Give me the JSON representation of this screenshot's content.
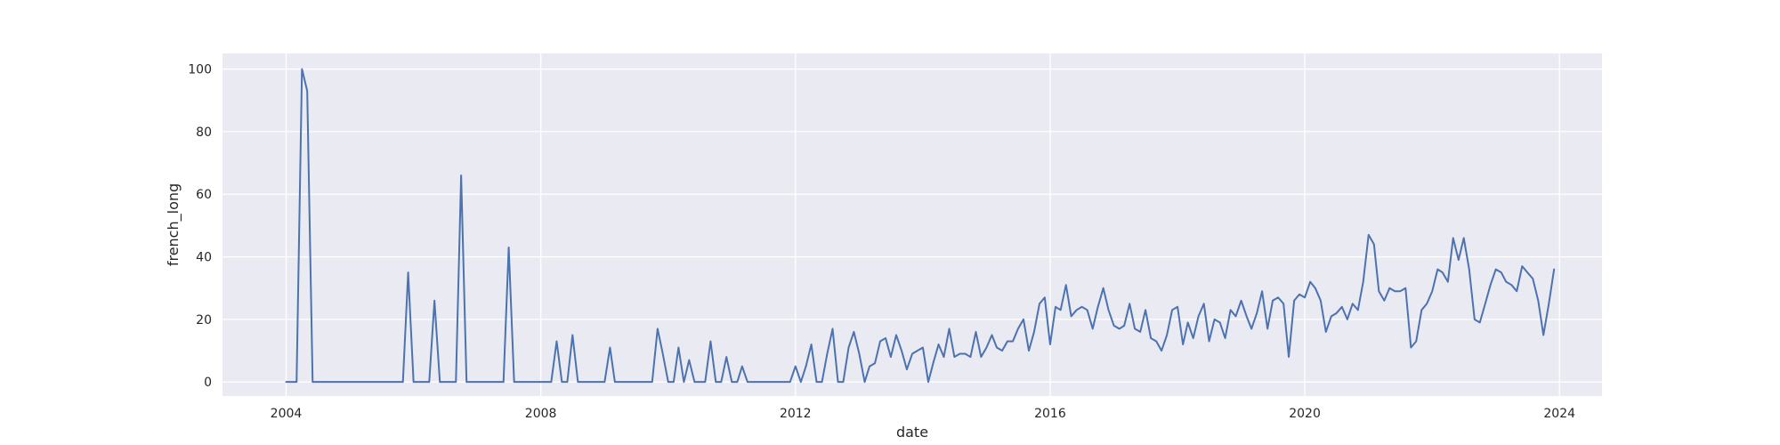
{
  "chart_data": {
    "type": "line",
    "title": "",
    "xlabel": "date",
    "ylabel": "french_long",
    "xlim": [
      "2003-01-01",
      "2024-09-01"
    ],
    "ylim": [
      -4.5,
      105
    ],
    "grid": true,
    "x_ticks": [
      {
        "date": "2004-01-01",
        "label": "2004"
      },
      {
        "date": "2008-01-01",
        "label": "2008"
      },
      {
        "date": "2012-01-01",
        "label": "2012"
      },
      {
        "date": "2016-01-01",
        "label": "2016"
      },
      {
        "date": "2020-01-01",
        "label": "2020"
      },
      {
        "date": "2024-01-01",
        "label": "2024"
      }
    ],
    "y_ticks": [
      0,
      20,
      40,
      60,
      80,
      100
    ],
    "line_color": "#4c72b0",
    "background_color": "#eaeaf2",
    "grid_color": "#ffffff",
    "start": "2004-01",
    "values": [
      0,
      0,
      0,
      100,
      93,
      0,
      0,
      0,
      0,
      0,
      0,
      0,
      0,
      0,
      0,
      0,
      0,
      0,
      0,
      0,
      0,
      0,
      0,
      35,
      0,
      0,
      0,
      0,
      26,
      0,
      0,
      0,
      0,
      66,
      0,
      0,
      0,
      0,
      0,
      0,
      0,
      0,
      43,
      0,
      0,
      0,
      0,
      0,
      0,
      0,
      0,
      13,
      0,
      0,
      15,
      0,
      0,
      0,
      0,
      0,
      0,
      11,
      0,
      0,
      0,
      0,
      0,
      0,
      0,
      0,
      17,
      9,
      0,
      0,
      11,
      0,
      7,
      0,
      0,
      0,
      13,
      0,
      0,
      8,
      0,
      0,
      5,
      0,
      0,
      0,
      0,
      0,
      0,
      0,
      0,
      0,
      5,
      0,
      5,
      12,
      0,
      0,
      9,
      17,
      0,
      0,
      11,
      16,
      9,
      0,
      5,
      6,
      13,
      14,
      8,
      15,
      10,
      4,
      9,
      10,
      11,
      0,
      6,
      12,
      8,
      17,
      8,
      9,
      9,
      8,
      16,
      8,
      11,
      15,
      11,
      10,
      13,
      13,
      17,
      20,
      10,
      16,
      25,
      27,
      12,
      24,
      23,
      31,
      21,
      23,
      24,
      23,
      17,
      24,
      30,
      23,
      18,
      17,
      18,
      25,
      17,
      16,
      23,
      14,
      13,
      10,
      15,
      23,
      24,
      12,
      19,
      14,
      21,
      25,
      13,
      20,
      19,
      14,
      23,
      21,
      26,
      21,
      17,
      22,
      29,
      17,
      26,
      27,
      25,
      8,
      26,
      28,
      27,
      32,
      30,
      26,
      16,
      21,
      22,
      24,
      20,
      25,
      23,
      32,
      47,
      44,
      29,
      26,
      30,
      29,
      29,
      30,
      11,
      13,
      23,
      25,
      29,
      36,
      35,
      32,
      46,
      39,
      46,
      36,
      20,
      19,
      25,
      31,
      36,
      35,
      32,
      31,
      29,
      37,
      35,
      33,
      26,
      15,
      25,
      36
    ]
  }
}
